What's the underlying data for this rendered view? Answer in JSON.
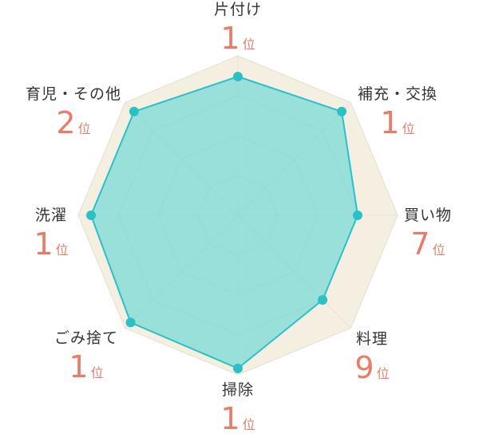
{
  "chart_data": {
    "type": "radar",
    "categories": [
      "片付け",
      "補充・交換",
      "買い物",
      "料理",
      "掃除",
      "ごみ捨て",
      "洗濯",
      "育児・その他"
    ],
    "ranks": [
      "1",
      "1",
      "7",
      "9",
      "1",
      "1",
      "1",
      "2"
    ],
    "rank_unit": "位",
    "scale_max": 1,
    "rings": 4,
    "series": [
      {
        "values": [
          1.0,
          1.0,
          1.0,
          1.0,
          1.0,
          1.0,
          1.0,
          1.0
        ],
        "color": "#f5efe2",
        "stroke": "#e8dfcc"
      },
      {
        "values": [
          0.87,
          0.92,
          0.75,
          0.75,
          0.96,
          0.95,
          0.92,
          0.92
        ],
        "color": "#5cd6d6",
        "stroke": "#2bc0c6",
        "point_color": "#2bc0c6"
      }
    ],
    "grid_color": "#e6e3d6"
  }
}
